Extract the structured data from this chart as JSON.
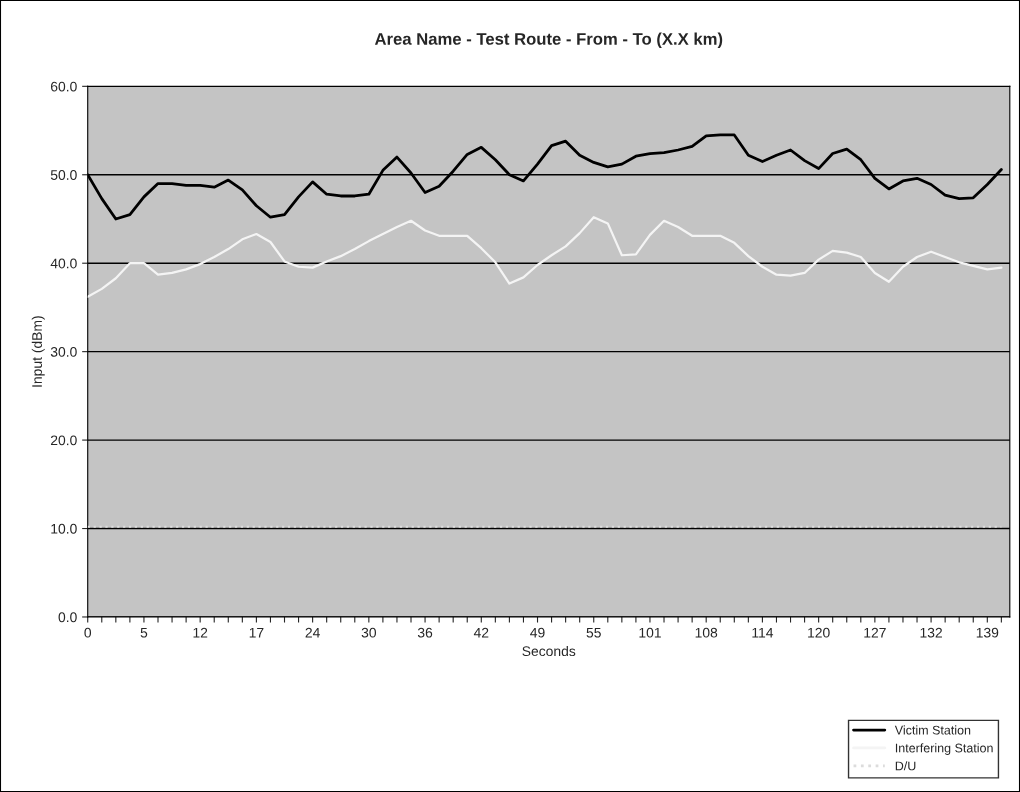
{
  "chart_data": {
    "type": "line",
    "title": "Area Name - Test Route - From - To (X.X km)",
    "xlabel": "Seconds",
    "ylabel": "Input (dBm)",
    "categories": [
      "0",
      null,
      null,
      null,
      "5",
      null,
      null,
      null,
      "12",
      null,
      null,
      null,
      "17",
      null,
      null,
      null,
      "24",
      null,
      null,
      null,
      "30",
      null,
      null,
      null,
      "36",
      null,
      null,
      null,
      "42",
      null,
      null,
      null,
      "49",
      null,
      null,
      null,
      "55",
      null,
      null,
      null,
      "101",
      null,
      null,
      null,
      "108",
      null,
      null,
      null,
      "114",
      null,
      null,
      null,
      "120",
      null,
      null,
      null,
      "127",
      null,
      null,
      null,
      "132",
      null,
      null,
      null,
      "139",
      null
    ],
    "ylim": [
      0,
      60
    ],
    "yticks": [
      {
        "value": 0,
        "label": "0.0"
      },
      {
        "value": 10,
        "label": "10.0"
      },
      {
        "value": 20,
        "label": "20.0"
      },
      {
        "value": 30,
        "label": "30.0"
      },
      {
        "value": 40,
        "label": "40.0"
      },
      {
        "value": 50,
        "label": "50.0"
      },
      {
        "value": 60,
        "label": "60.0"
      }
    ],
    "grid": "y",
    "legend": "bottom right",
    "marker": "none",
    "series": [
      {
        "name": "Victim Station",
        "color": "#000000",
        "line_style": "solid",
        "values": [
          50.0,
          47.3,
          45.0,
          45.5,
          47.5,
          49.0,
          49.0,
          48.8,
          48.8,
          48.6,
          49.4,
          48.3,
          46.5,
          45.2,
          45.5,
          47.5,
          49.2,
          47.8,
          47.6,
          47.6,
          47.8,
          50.5,
          52.0,
          50.2,
          48.0,
          48.7,
          50.4,
          52.3,
          53.1,
          51.7,
          50.0,
          49.3,
          51.2,
          53.3,
          53.8,
          52.2,
          51.4,
          50.9,
          51.2,
          52.1,
          52.4,
          52.5,
          52.8,
          53.2,
          54.4,
          54.5,
          54.5,
          52.2,
          51.5,
          52.2,
          52.8,
          51.6,
          50.7,
          52.4,
          52.9,
          51.7,
          49.6,
          48.4,
          49.3,
          49.6,
          48.9,
          47.7,
          47.3,
          47.4,
          48.9,
          50.6
        ]
      },
      {
        "name": "Interfering Station",
        "color": "#f4f4f4",
        "line_style": "solid",
        "values": [
          36.2,
          37.1,
          38.3,
          40.0,
          40.0,
          38.7,
          38.9,
          39.3,
          39.9,
          40.7,
          41.6,
          42.7,
          43.3,
          42.4,
          40.2,
          39.6,
          39.5,
          40.2,
          40.8,
          41.6,
          42.5,
          43.3,
          44.1,
          44.8,
          43.7,
          43.1,
          43.1,
          43.1,
          41.7,
          40.1,
          37.7,
          38.4,
          39.8,
          40.9,
          41.9,
          43.4,
          45.2,
          44.5,
          40.9,
          41.0,
          43.2,
          44.8,
          44.1,
          43.1,
          43.1,
          43.1,
          42.3,
          40.8,
          39.6,
          38.7,
          38.6,
          38.9,
          40.4,
          41.4,
          41.2,
          40.7,
          38.9,
          37.9,
          39.6,
          40.7,
          41.3,
          40.7,
          40.1,
          39.7,
          39.3,
          39.5
        ]
      },
      {
        "name": "D/U",
        "color": "#dcdcdc",
        "line_style": "dotted",
        "values": [
          10.2,
          10.2,
          10.2,
          10.2,
          10.2,
          10.2,
          10.2,
          10.2,
          10.2,
          10.2,
          10.2,
          10.2,
          10.2,
          10.2,
          10.2,
          10.2,
          10.2,
          10.2,
          10.2,
          10.2,
          10.2,
          10.2,
          10.2,
          10.2,
          10.2,
          10.2,
          10.2,
          10.2,
          10.2,
          10.2,
          10.2,
          10.2,
          10.2,
          10.2,
          10.2,
          10.2,
          10.2,
          10.2,
          10.2,
          10.2,
          10.2,
          10.2,
          10.2,
          10.2,
          10.2,
          10.2,
          10.2,
          10.2,
          10.2,
          10.2,
          10.2,
          10.2,
          10.2,
          10.2,
          10.2,
          10.2,
          10.2,
          10.2,
          10.2,
          10.2,
          10.2,
          10.2,
          10.2,
          10.2,
          10.2,
          10.2
        ]
      }
    ]
  }
}
